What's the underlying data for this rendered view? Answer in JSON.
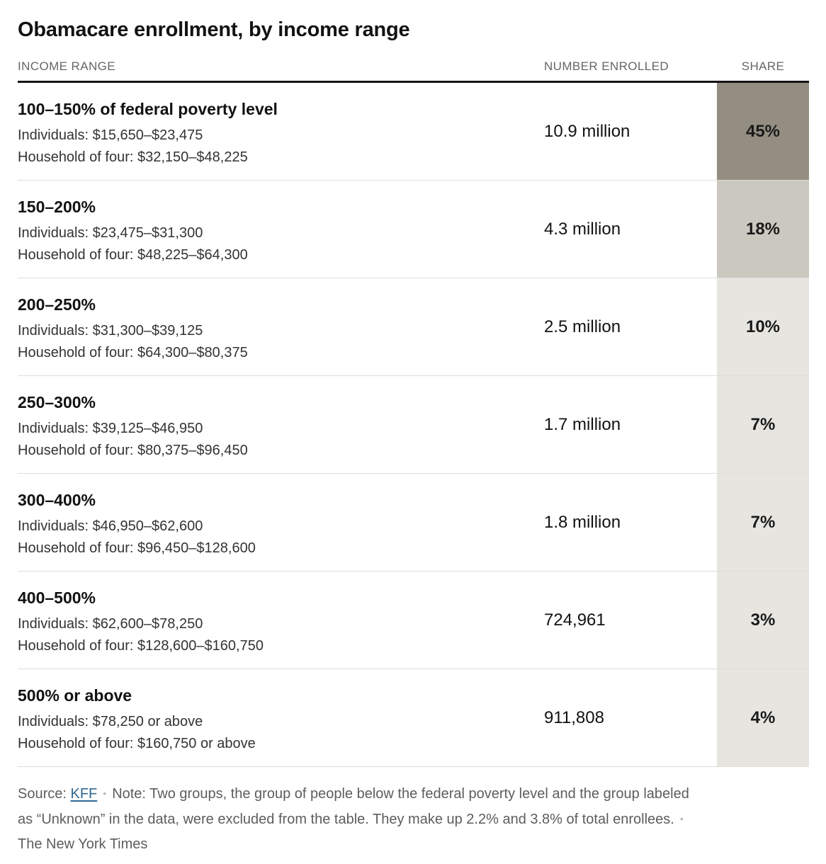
{
  "chart_data": {
    "type": "table",
    "title": "Obamacare enrollment, by income range",
    "columns": [
      "INCOME RANGE",
      "NUMBER ENROLLED",
      "SHARE"
    ],
    "layout": {
      "share_column_shading": "darker cell = larger share",
      "grid": "horizontal row separators only"
    },
    "rows": [
      {
        "range": "100–150% of federal poverty level",
        "individuals": "Individuals: $15,650–$23,475",
        "household": "Household of four: $32,150–$48,225",
        "enrolled": "10.9 million",
        "enrolled_value": 10900000,
        "share": "45%",
        "share_value": 45,
        "share_bg": "#938e81"
      },
      {
        "range": "150–200%",
        "individuals": "Individuals: $23,475–$31,300",
        "household": "Household of four: $48,225–$64,300",
        "enrolled": "4.3 million",
        "enrolled_value": 4300000,
        "share": "18%",
        "share_value": 18,
        "share_bg": "#cbc8bf"
      },
      {
        "range": "200–250%",
        "individuals": "Individuals: $31,300–$39,125",
        "household": "Household of four: $64,300–$80,375",
        "enrolled": "2.5 million",
        "enrolled_value": 2500000,
        "share": "10%",
        "share_value": 10,
        "share_bg": "#e6e5e0"
      },
      {
        "range": "250–300%",
        "individuals": "Individuals: $39,125–$46,950",
        "household": "Household of four: $80,375–$96,450",
        "enrolled": "1.7 million",
        "enrolled_value": 1700000,
        "share": "7%",
        "share_value": 7,
        "share_bg": "#e6e5e0"
      },
      {
        "range": "300–400%",
        "individuals": "Individuals: $46,950–$62,600",
        "household": "Household of four: $96,450–$128,600",
        "enrolled": "1.8 million",
        "enrolled_value": 1800000,
        "share": "7%",
        "share_value": 7,
        "share_bg": "#e6e5e0"
      },
      {
        "range": "400–500%",
        "individuals": "Individuals: $62,600–$78,250",
        "household": "Household of four: $128,600–$160,750",
        "enrolled": "724,961",
        "enrolled_value": 724961,
        "share": "3%",
        "share_value": 3,
        "share_bg": "#e6e5e0"
      },
      {
        "range": "500% or above",
        "individuals": "Individuals: $78,250 or above",
        "household": "Household of four: $160,750 or above",
        "enrolled": "911,808",
        "enrolled_value": 911808,
        "share": "4%",
        "share_value": 4,
        "share_bg": "#e6e5e0"
      }
    ]
  },
  "footer": {
    "source_label": "Source:",
    "source_link": "KFF",
    "separator": "•",
    "note_line1": "Note: Two groups, the group of people below the federal poverty level and the group labeled",
    "note_line2": "as “Unknown” in the data, were excluded from the table. They make up 2.2% and 3.8% of total enrollees.",
    "credit": "The New York Times"
  },
  "colors": {
    "share_dark": "#938e81",
    "share_medium": "#cbc8bf",
    "share_light": "#e6e5e0",
    "header_rule": "#141414",
    "row_rule": "#dfdedb",
    "link_blue": "#326891",
    "muted_text": "#666666"
  }
}
